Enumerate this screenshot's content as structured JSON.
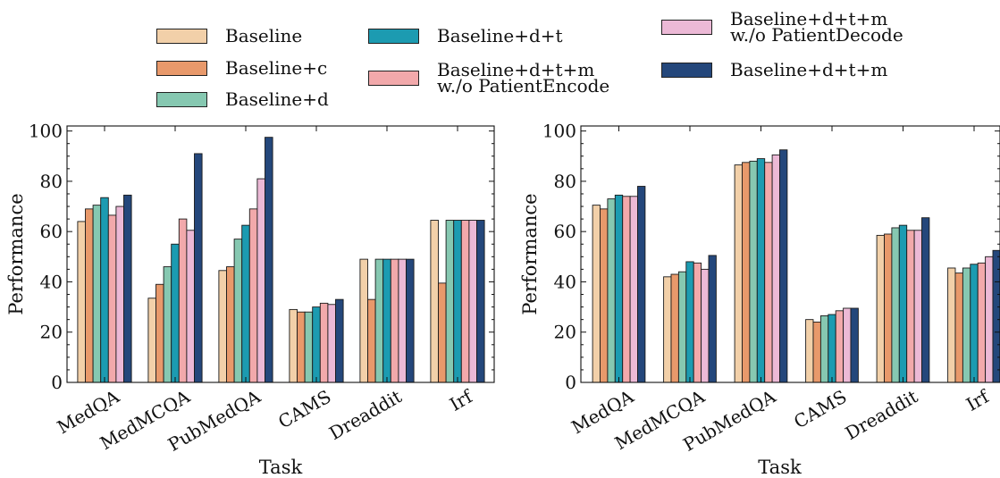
{
  "legend": {
    "entries": [
      {
        "label": "Baseline",
        "color": "#f2d0a9"
      },
      {
        "label": "Baseline+c",
        "color": "#e8996b"
      },
      {
        "label": "Baseline+d",
        "color": "#86c8b1"
      },
      {
        "label": "Baseline+d+t",
        "color": "#1c9bb1"
      },
      {
        "label": "Baseline+d+t+m\nw./o PatientEncode",
        "color": "#f2a9ab"
      },
      {
        "label": "Baseline+d+t+m\nw./o PatientDecode",
        "color": "#ecb9d6"
      },
      {
        "label": "Baseline+d+t+m",
        "color": "#24477b"
      }
    ]
  },
  "chart_data": [
    {
      "type": "bar",
      "xlabel": "Task",
      "ylabel": "Performance",
      "ylim": [
        0,
        102
      ],
      "yticks": [
        0,
        20,
        40,
        60,
        80,
        100
      ],
      "categories": [
        "MedQA",
        "MedMCQA",
        "PubMedQA",
        "CAMS",
        "Dreaddit",
        "Irf"
      ],
      "series": [
        {
          "name": "Baseline",
          "values": [
            64,
            33.5,
            44.5,
            29,
            49,
            64.5
          ]
        },
        {
          "name": "Baseline+c",
          "values": [
            69,
            39,
            46,
            28,
            33,
            39.5
          ]
        },
        {
          "name": "Baseline+d",
          "values": [
            70.5,
            46,
            57,
            28,
            49,
            64.5
          ]
        },
        {
          "name": "Baseline+d+t",
          "values": [
            73.5,
            55,
            62.5,
            30,
            49,
            64.5
          ]
        },
        {
          "name": "Baseline+d+t+m w./o PatientEncode",
          "values": [
            66.5,
            65,
            69,
            31.5,
            49,
            64.5
          ]
        },
        {
          "name": "Baseline+d+t+m w./o PatientDecode",
          "values": [
            70,
            60.5,
            81,
            31,
            49,
            64.5
          ]
        },
        {
          "name": "Baseline+d+t+m",
          "values": [
            74.5,
            91,
            97.5,
            33,
            49,
            64.5
          ]
        }
      ]
    },
    {
      "type": "bar",
      "xlabel": "Task",
      "ylabel": "Performance",
      "ylim": [
        0,
        102
      ],
      "yticks": [
        0,
        20,
        40,
        60,
        80,
        100
      ],
      "categories": [
        "MedQA",
        "MedMCQA",
        "PubMedQA",
        "CAMS",
        "Dreaddit",
        "Irf"
      ],
      "series": [
        {
          "name": "Baseline",
          "values": [
            70.5,
            42,
            86.5,
            25,
            58.5,
            45.5
          ]
        },
        {
          "name": "Baseline+c",
          "values": [
            69,
            43,
            87.5,
            24,
            59,
            43.5
          ]
        },
        {
          "name": "Baseline+d",
          "values": [
            73,
            44,
            88,
            26.5,
            61.5,
            45.5
          ]
        },
        {
          "name": "Baseline+d+t",
          "values": [
            74.5,
            48,
            89,
            27,
            62.5,
            47
          ]
        },
        {
          "name": "Baseline+d+t+m w./o PatientEncode",
          "values": [
            74,
            47.5,
            87.5,
            28.5,
            60.5,
            47.5
          ]
        },
        {
          "name": "Baseline+d+t+m w./o PatientDecode",
          "values": [
            74,
            45,
            90.5,
            29.5,
            60.5,
            50
          ]
        },
        {
          "name": "Baseline+d+t+m",
          "values": [
            78,
            50.5,
            92.5,
            29.5,
            65.5,
            52.5
          ]
        }
      ]
    }
  ]
}
